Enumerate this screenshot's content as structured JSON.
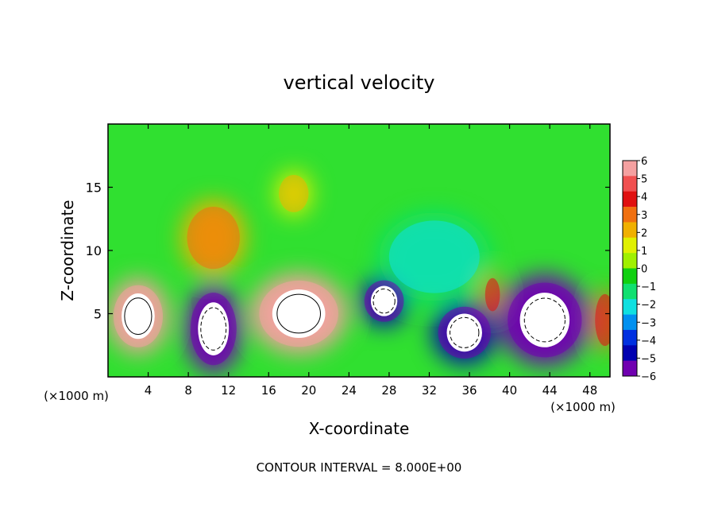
{
  "chart_data": {
    "type": "heatmap",
    "title": "vertical velocity",
    "xlabel": "X-coordinate",
    "ylabel": "Z-coordinate",
    "x_unit_label": "(×1000 m)",
    "footer": "CONTOUR INTERVAL = 8.000E+00",
    "xlim": [
      0,
      50
    ],
    "ylim": [
      0,
      20
    ],
    "x_ticks": [
      4,
      8,
      12,
      16,
      20,
      24,
      28,
      32,
      36,
      40,
      44,
      48
    ],
    "y_ticks": [
      5,
      10,
      15
    ],
    "colorbar": {
      "range": [
        -6,
        6
      ],
      "tick_labels": [
        "6",
        "5",
        "4",
        "3",
        "2",
        "1",
        "0",
        "−1",
        "−2",
        "−3",
        "−4",
        "−5",
        "−6"
      ],
      "colors": [
        "#f4a0a0",
        "#f05050",
        "#e01010",
        "#f07010",
        "#f0b000",
        "#e0f000",
        "#a0f000",
        "#10d010",
        "#10e070",
        "#10e0e0",
        "#0090f0",
        "#0030e0",
        "#0000b0",
        "#7000b0"
      ]
    },
    "features": [
      {
        "kind": "updraft",
        "x": 3,
        "z": 4.8,
        "rx": 3.0,
        "rz": 3.0,
        "value": 8
      },
      {
        "kind": "updraft",
        "x": 19,
        "z": 5.0,
        "rx": 4.8,
        "rz": 3.2,
        "value": 8
      },
      {
        "kind": "updraft",
        "x": 10.5,
        "z": 11.0,
        "rx": 3.2,
        "rz": 3.0,
        "value": 3
      },
      {
        "kind": "updraft",
        "x": 18.5,
        "z": 14.5,
        "rx": 1.8,
        "rz": 1.8,
        "value": 2
      },
      {
        "kind": "updraft",
        "x": 49.5,
        "z": 4.5,
        "rx": 1.2,
        "rz": 2.5,
        "value": 4
      },
      {
        "kind": "updraft",
        "x": 38.3,
        "z": 6.5,
        "rx": 0.9,
        "rz": 1.6,
        "value": 4
      },
      {
        "kind": "downdraft",
        "x": 10.5,
        "z": 3.8,
        "rx": 2.8,
        "rz": 3.5,
        "value": -8
      },
      {
        "kind": "downdraft",
        "x": 27.5,
        "z": 6.0,
        "rx": 2.4,
        "rz": 2.0,
        "value": -7
      },
      {
        "kind": "downdraft",
        "x": 35.5,
        "z": 3.5,
        "rx": 3.2,
        "rz": 2.5,
        "value": -7
      },
      {
        "kind": "downdraft",
        "x": 43.5,
        "z": 4.5,
        "rx": 4.5,
        "rz": 3.6,
        "value": -8
      },
      {
        "kind": "downdraft",
        "x": 32.5,
        "z": 9.5,
        "rx": 5.5,
        "rz": 3.5,
        "value": -2
      }
    ]
  }
}
